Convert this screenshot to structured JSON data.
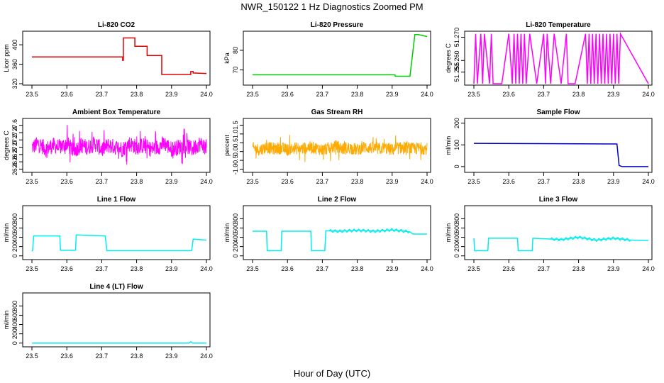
{
  "figure": {
    "title": "NWR_150122  1 Hz Diagnostics Zoomed PM",
    "xlabel": "Hour of Day (UTC)"
  },
  "chart_data": [
    {
      "type": "line",
      "id": "co2",
      "title": "Li-820 CO2",
      "ylabel": "Licor ppm",
      "color": "#dd0000",
      "xlim": [
        23.5,
        24.0
      ],
      "ylim": [
        320,
        425
      ],
      "xticks": [
        "23.5",
        "23.6",
        "23.7",
        "23.8",
        "23.9",
        "24.0"
      ],
      "yticks": [
        "320",
        "360",
        "400"
      ],
      "x": [
        23.5,
        23.76,
        23.76,
        23.762,
        23.762,
        23.795,
        23.795,
        23.83,
        23.83,
        23.872,
        23.872,
        23.955,
        23.955,
        23.962,
        23.962,
        24.0
      ],
      "y": [
        375,
        375,
        368,
        368,
        414,
        414,
        397,
        397,
        378,
        378,
        339,
        339,
        345,
        345,
        342,
        341
      ]
    },
    {
      "type": "line",
      "id": "pressure",
      "title": "Li-820 Pressure",
      "ylabel": "kPa",
      "color": "#00cc00",
      "xlim": [
        23.5,
        24.0
      ],
      "ylim": [
        63,
        89
      ],
      "xticks": [
        "23.5",
        "23.6",
        "23.7",
        "23.8",
        "23.9",
        "24.0"
      ],
      "yticks": [
        "70",
        "80"
      ],
      "x": [
        23.5,
        23.908,
        23.909,
        23.951,
        23.965,
        23.975,
        24.0
      ],
      "y": [
        67.5,
        67.5,
        66.8,
        66.8,
        88.0,
        88.0,
        87.0
      ]
    },
    {
      "type": "line",
      "id": "temperature",
      "title": "Li-820 Temperature",
      "ylabel": "degrees C",
      "color": "#ff00ff",
      "xlim": [
        23.5,
        24.0
      ],
      "ylim": [
        51.25,
        51.272
      ],
      "xticks": [
        "23.5",
        "23.6",
        "23.7",
        "23.8",
        "23.9",
        "24.0"
      ],
      "yticks": [
        "51.255",
        "51.260",
        "51.270"
      ],
      "x": [
        23.5,
        23.505,
        23.51,
        23.52,
        23.525,
        23.53,
        23.545,
        23.55,
        23.555,
        23.58,
        23.6,
        23.61,
        23.615,
        23.62,
        23.625,
        23.63,
        23.635,
        23.64,
        23.645,
        23.65,
        23.66,
        23.68,
        23.7,
        23.705,
        23.71,
        23.72,
        23.73,
        23.75,
        23.765,
        23.77,
        23.79,
        23.82,
        23.825,
        23.83,
        23.835,
        23.84,
        23.845,
        23.85,
        23.855,
        23.86,
        23.865,
        23.87,
        23.875,
        23.88,
        23.885,
        23.89,
        23.895,
        23.9,
        23.905,
        23.91,
        23.915,
        23.92,
        24.0
      ],
      "y": [
        51.25,
        51.2715,
        51.25,
        51.2715,
        51.25,
        51.2715,
        51.25,
        51.2715,
        51.25,
        51.25,
        51.2715,
        51.25,
        51.2715,
        51.25,
        51.2715,
        51.25,
        51.2715,
        51.25,
        51.2715,
        51.25,
        51.2715,
        51.25,
        51.2715,
        51.25,
        51.2715,
        51.25,
        51.2715,
        51.25,
        51.2715,
        51.25,
        51.25,
        51.2715,
        51.25,
        51.2715,
        51.25,
        51.2715,
        51.25,
        51.2715,
        51.25,
        51.2715,
        51.25,
        51.2715,
        51.25,
        51.2715,
        51.25,
        51.2715,
        51.25,
        51.2715,
        51.25,
        51.2715,
        51.25,
        51.2715,
        51.25
      ]
    },
    {
      "type": "line",
      "id": "box_temp",
      "title": "Ambient Box Temperature",
      "ylabel": "degrees C",
      "color": "#ff00ff",
      "xlim": [
        23.5,
        24.0
      ],
      "ylim": [
        26.35,
        27.75
      ],
      "xticks": [
        "23.5",
        "23.6",
        "23.7",
        "23.8",
        "23.9",
        "24.0"
      ],
      "yticks": [
        "26.4",
        "26.6",
        "26.8",
        "27.0",
        "27.2",
        "27.4",
        "27.6"
      ],
      "x": [
        23.5,
        23.52,
        23.54,
        23.56,
        23.58,
        23.6,
        23.62,
        23.64,
        23.66,
        23.68,
        23.7,
        23.72,
        23.74,
        23.76,
        23.78,
        23.8,
        23.82,
        23.84,
        23.86,
        23.88,
        23.9,
        23.92,
        23.94,
        23.96,
        23.98,
        24.0
      ],
      "y": [
        27.0,
        27.1,
        26.95,
        27.05,
        27.0,
        27.1,
        26.9,
        27.05,
        27.0,
        27.1,
        26.95,
        27.05,
        27.0,
        26.95,
        27.1,
        27.0,
        27.05,
        26.95,
        27.0,
        27.1,
        26.95,
        27.0,
        27.05,
        26.95,
        27.1,
        27.0
      ]
    },
    {
      "type": "line",
      "id": "rh",
      "title": "Gas Stream RH",
      "ylabel": "percent",
      "color": "#ffaa00",
      "xlim": [
        23.5,
        24.0
      ],
      "ylim": [
        -1.1,
        1.8
      ],
      "xticks": [
        "23.5",
        "23.6",
        "23.7",
        "23.8",
        "23.9",
        "24.0"
      ],
      "yticks": [
        "-1.0",
        "-0.5",
        "0.0",
        "0.5",
        "1.0",
        "1.5"
      ],
      "x": [
        23.5,
        23.52,
        23.54,
        23.56,
        23.58,
        23.6,
        23.62,
        23.64,
        23.66,
        23.68,
        23.7,
        23.72,
        23.74,
        23.76,
        23.78,
        23.8,
        23.82,
        23.84,
        23.86,
        23.88,
        23.9,
        23.92,
        23.94,
        23.96,
        23.98,
        24.0
      ],
      "y": [
        0.2,
        0.1,
        0.25,
        0.15,
        0.2,
        0.1,
        0.2,
        0.15,
        0.25,
        0.2,
        0.1,
        0.2,
        0.3,
        0.15,
        0.2,
        0.1,
        0.25,
        0.2,
        0.15,
        0.2,
        0.1,
        0.2,
        0.25,
        0.15,
        0.2,
        0.15
      ]
    },
    {
      "type": "line",
      "id": "sample_flow",
      "title": "Sample Flow",
      "ylabel": "ml/min",
      "color": "#0000cc",
      "xlim": [
        23.5,
        24.0
      ],
      "ylim": [
        -20,
        215
      ],
      "xticks": [
        "23.5",
        "23.6",
        "23.7",
        "23.8",
        "23.9",
        "24.0"
      ],
      "yticks": [
        "0",
        "100",
        "200"
      ],
      "x": [
        23.5,
        23.91,
        23.916,
        23.925,
        24.0
      ],
      "y": [
        107,
        104,
        5,
        0,
        0
      ]
    },
    {
      "type": "line",
      "id": "line1",
      "title": "Line 1 Flow",
      "ylabel": "ml/min",
      "color": "#00eeee",
      "xlim": [
        23.5,
        24.0
      ],
      "ylim": [
        -50,
        1050
      ],
      "xticks": [
        "23.5",
        "23.6",
        "23.7",
        "23.8",
        "23.9",
        "24.0"
      ],
      "yticks": [
        "0",
        "200",
        "400",
        "600",
        "800"
      ],
      "x": [
        23.5,
        23.502,
        23.505,
        23.58,
        23.582,
        23.625,
        23.627,
        23.71,
        23.715,
        23.955,
        23.958,
        23.962,
        24.0
      ],
      "y": [
        100,
        120,
        430,
        430,
        120,
        120,
        450,
        430,
        110,
        110,
        120,
        360,
        340
      ]
    },
    {
      "type": "line",
      "id": "line2",
      "title": "Line 2 Flow",
      "ylabel": "ml/min",
      "color": "#00eeee",
      "xlim": [
        23.5,
        24.0
      ],
      "ylim": [
        -50,
        1050
      ],
      "xticks": [
        "23.5",
        "23.6",
        "23.7",
        "23.8",
        "23.9",
        "24.0"
      ],
      "yticks": [
        "0",
        "200",
        "400",
        "600",
        "800"
      ],
      "x": [
        23.5,
        23.54,
        23.542,
        23.582,
        23.584,
        23.667,
        23.669,
        23.707,
        23.71,
        23.75,
        23.8,
        23.85,
        23.9,
        23.95,
        23.96,
        24.0
      ],
      "y": [
        530,
        530,
        110,
        110,
        530,
        530,
        110,
        110,
        540,
        530,
        550,
        530,
        560,
        520,
        470,
        470
      ]
    },
    {
      "type": "line",
      "id": "line3",
      "title": "Line 3 Flow",
      "ylabel": "ml/min",
      "color": "#00eeee",
      "xlim": [
        23.5,
        24.0
      ],
      "ylim": [
        -50,
        1050
      ],
      "xticks": [
        "23.5",
        "23.6",
        "23.7",
        "23.8",
        "23.9",
        "24.0"
      ],
      "yticks": [
        "0",
        "200",
        "400",
        "600",
        "800"
      ],
      "x": [
        23.5,
        23.502,
        23.504,
        23.54,
        23.542,
        23.625,
        23.627,
        23.667,
        23.669,
        23.75,
        23.8,
        23.85,
        23.9,
        23.95,
        24.0
      ],
      "y": [
        380,
        110,
        110,
        110,
        380,
        380,
        110,
        110,
        380,
        350,
        400,
        340,
        380,
        340,
        330
      ]
    },
    {
      "type": "line",
      "id": "line4",
      "title": "Line 4 (LT) Flow",
      "ylabel": "ml/min",
      "color": "#00eeee",
      "xlim": [
        23.5,
        24.0
      ],
      "ylim": [
        -50,
        1050
      ],
      "xticks": [
        "23.5",
        "23.6",
        "23.7",
        "23.8",
        "23.9",
        "24.0"
      ],
      "yticks": [
        "0",
        "200",
        "400",
        "600",
        "800"
      ],
      "x": [
        23.5,
        23.95,
        23.955,
        23.96,
        23.965,
        24.0
      ],
      "y": [
        0,
        0,
        30,
        0,
        0,
        0
      ]
    }
  ]
}
